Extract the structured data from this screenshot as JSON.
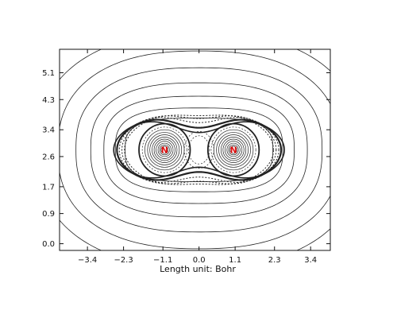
{
  "chart_data": {
    "type": "contour",
    "title": "",
    "xlabel": "Length unit: Bohr",
    "ylabel": "",
    "xlim": [
      -4.25,
      4.0
    ],
    "ylim": [
      -0.2,
      5.8
    ],
    "x_ticks": [
      -3.4,
      -2.3,
      -1.1,
      0.0,
      1.1,
      2.3,
      3.4
    ],
    "x_tick_labels": [
      "−3.4",
      "−2.3",
      "−1.1",
      "0.0",
      "1.1",
      "2.3",
      "3.4"
    ],
    "y_ticks": [
      0.0,
      0.9,
      1.7,
      2.6,
      3.4,
      4.3,
      5.1
    ],
    "y_tick_labels": [
      "0.0",
      "0.9",
      "1.7",
      "2.6",
      "3.4",
      "4.3",
      "5.1"
    ],
    "grid": false,
    "atoms": [
      {
        "label": "N",
        "x": -1.05,
        "y": 2.8
      },
      {
        "label": "N",
        "x": 1.05,
        "y": 2.8
      }
    ],
    "contour_styles": {
      "outer": "solid",
      "inner": "dashed",
      "core": "solid"
    },
    "colors": {
      "axes": "#111111",
      "contour": "#222222",
      "atom_label": "#e01010"
    }
  }
}
